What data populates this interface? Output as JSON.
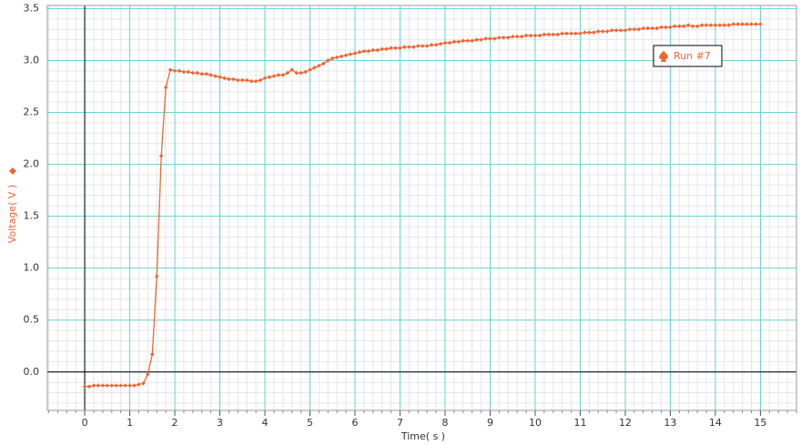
{
  "chart_data": {
    "type": "line",
    "x_label": "Time( s )",
    "y_label": "Voltage( V )",
    "x": [
      0,
      0.1,
      0.2,
      0.3,
      0.4,
      0.5,
      0.6,
      0.7,
      0.8,
      0.9,
      1,
      1.1,
      1.2,
      1.3,
      1.4,
      1.5,
      1.6,
      1.7,
      1.8,
      1.9,
      2,
      2.1,
      2.2,
      2.3,
      2.4,
      2.5,
      2.6,
      2.7,
      2.8,
      2.9,
      3,
      3.1,
      3.2,
      3.3,
      3.4,
      3.5,
      3.6,
      3.7,
      3.8,
      3.9,
      4,
      4.1,
      4.2,
      4.3,
      4.4,
      4.5,
      4.6,
      4.7,
      4.8,
      4.9,
      5,
      5.1,
      5.2,
      5.3,
      5.4,
      5.5,
      5.6,
      5.7,
      5.8,
      5.9,
      6,
      6.1,
      6.2,
      6.3,
      6.4,
      6.5,
      6.6,
      6.7,
      6.8,
      6.9,
      7,
      7.1,
      7.2,
      7.3,
      7.4,
      7.5,
      7.6,
      7.7,
      7.8,
      7.9,
      8,
      8.1,
      8.2,
      8.3,
      8.4,
      8.5,
      8.6,
      8.7,
      8.8,
      8.9,
      9,
      9.1,
      9.2,
      9.3,
      9.4,
      9.5,
      9.6,
      9.7,
      9.8,
      9.9,
      10,
      10.1,
      10.2,
      10.3,
      10.4,
      10.5,
      10.6,
      10.7,
      10.8,
      10.9,
      11,
      11.1,
      11.2,
      11.3,
      11.4,
      11.5,
      11.6,
      11.7,
      11.8,
      11.9,
      12,
      12.1,
      12.2,
      12.3,
      12.4,
      12.5,
      12.6,
      12.7,
      12.8,
      12.9,
      13,
      13.1,
      13.2,
      13.3,
      13.4,
      13.5,
      13.6,
      13.7,
      13.8,
      13.9,
      14,
      14.1,
      14.2,
      14.3,
      14.4,
      14.5,
      14.6,
      14.7,
      14.8,
      14.9,
      15
    ],
    "series": [
      {
        "name": "Run #7",
        "color": "#ee6633",
        "values": [
          -0.14,
          -0.14,
          -0.13,
          -0.13,
          -0.13,
          -0.13,
          -0.13,
          -0.13,
          -0.13,
          -0.13,
          -0.13,
          -0.13,
          -0.12,
          -0.11,
          -0.02,
          0.17,
          0.92,
          2.08,
          2.74,
          2.91,
          2.9,
          2.9,
          2.89,
          2.89,
          2.88,
          2.88,
          2.87,
          2.87,
          2.86,
          2.85,
          2.84,
          2.83,
          2.82,
          2.82,
          2.81,
          2.81,
          2.81,
          2.8,
          2.8,
          2.81,
          2.83,
          2.84,
          2.85,
          2.86,
          2.86,
          2.88,
          2.91,
          2.88,
          2.88,
          2.89,
          2.91,
          2.93,
          2.95,
          2.97,
          3.0,
          3.02,
          3.03,
          3.04,
          3.05,
          3.06,
          3.07,
          3.08,
          3.09,
          3.09,
          3.1,
          3.1,
          3.11,
          3.11,
          3.12,
          3.12,
          3.12,
          3.13,
          3.13,
          3.13,
          3.14,
          3.14,
          3.14,
          3.15,
          3.15,
          3.16,
          3.17,
          3.17,
          3.18,
          3.18,
          3.19,
          3.19,
          3.19,
          3.2,
          3.2,
          3.21,
          3.21,
          3.21,
          3.22,
          3.22,
          3.22,
          3.23,
          3.23,
          3.23,
          3.24,
          3.24,
          3.24,
          3.24,
          3.25,
          3.25,
          3.25,
          3.25,
          3.26,
          3.26,
          3.26,
          3.26,
          3.26,
          3.27,
          3.27,
          3.27,
          3.28,
          3.28,
          3.28,
          3.29,
          3.29,
          3.29,
          3.29,
          3.3,
          3.3,
          3.3,
          3.31,
          3.31,
          3.31,
          3.31,
          3.32,
          3.32,
          3.32,
          3.33,
          3.33,
          3.33,
          3.34,
          3.33,
          3.33,
          3.34,
          3.34,
          3.34,
          3.34,
          3.34,
          3.34,
          3.34,
          3.35,
          3.35,
          3.35,
          3.35,
          3.35,
          3.35,
          3.35
        ]
      }
    ],
    "xlim": [
      -0.83,
      15.8
    ],
    "ylim": [
      -0.37,
      3.53
    ],
    "xticks": [
      0,
      1,
      2,
      3,
      4,
      5,
      6,
      7,
      8,
      9,
      10,
      11,
      12,
      13,
      14,
      15
    ],
    "yticks": [
      {
        "value": 0,
        "label": "0.0"
      },
      0.5,
      {
        "value": 1,
        "label": "1.0"
      },
      1.5,
      {
        "value": 2,
        "label": "2.0"
      },
      2.5,
      {
        "value": 3,
        "label": "3.0"
      },
      3.5
    ],
    "grid": true,
    "minor_grid": true,
    "legend": "upper right"
  }
}
